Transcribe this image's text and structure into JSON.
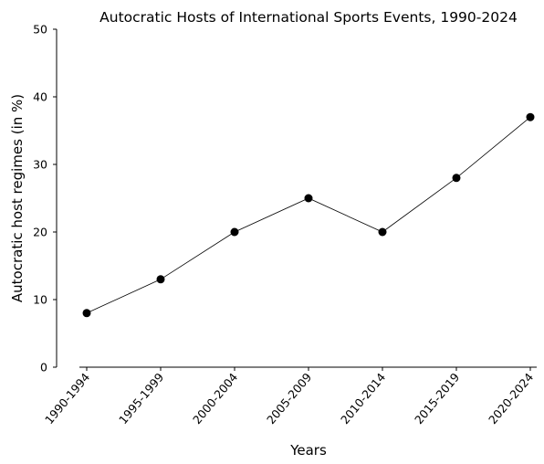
{
  "chart_data": {
    "type": "line",
    "title": "Autocratic Hosts of International Sports Events, 1990-2024",
    "xlabel": "Years",
    "ylabel": "Autocratic host regimes (in %)",
    "categories": [
      "1990-1994",
      "1995-1999",
      "2000-2004",
      "2005-2009",
      "2010-2014",
      "2015-2019",
      "2020-2024"
    ],
    "series": [
      {
        "values": [
          8,
          13,
          20,
          25,
          20,
          28,
          37
        ]
      }
    ],
    "ylim": [
      0,
      50
    ],
    "yticks": [
      0,
      10,
      20,
      30,
      40,
      50
    ],
    "grid": false,
    "legend": "none",
    "colors": {
      "line": "#000000",
      "marker": "#000000"
    }
  }
}
